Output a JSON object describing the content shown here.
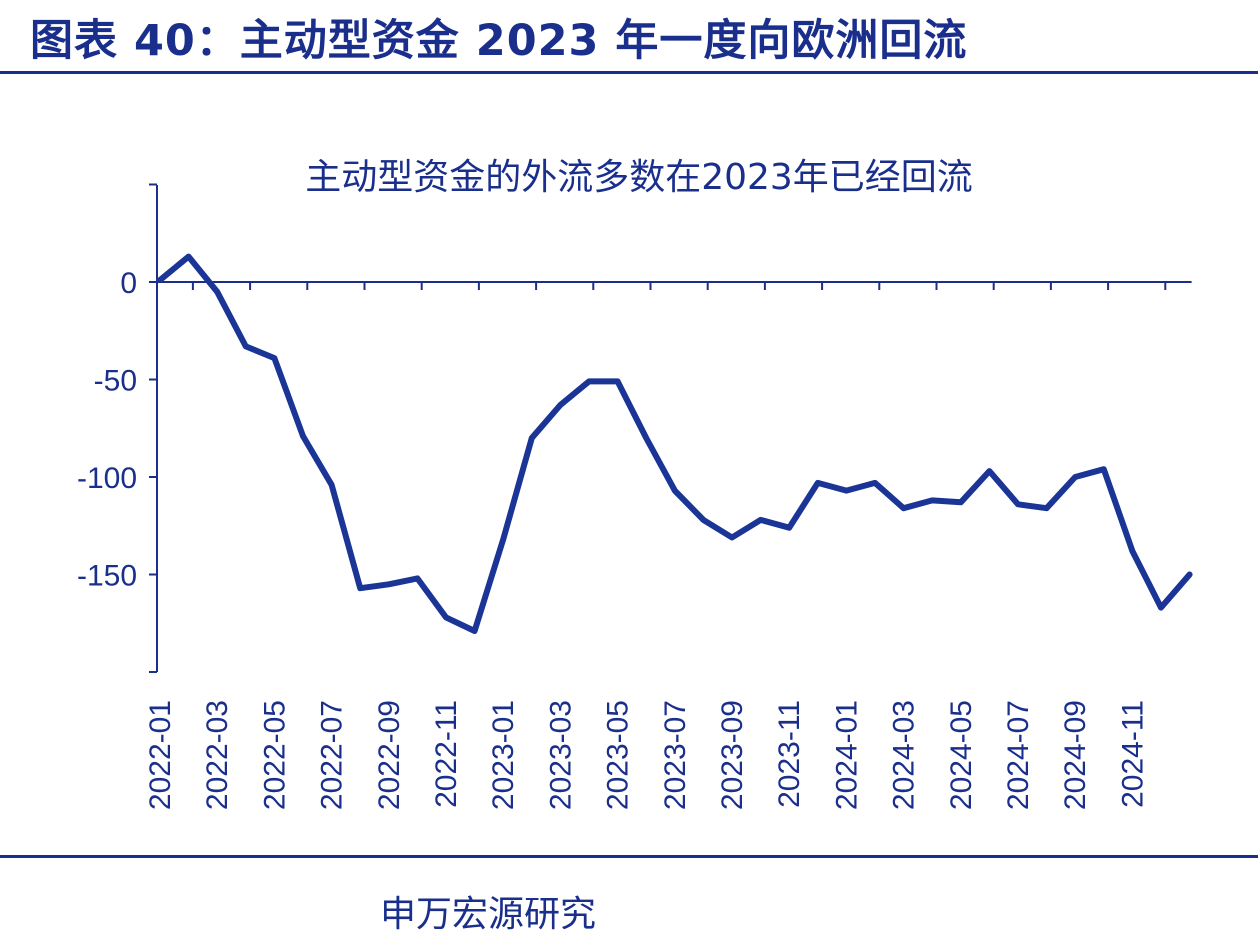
{
  "header": {
    "figure_title": "图表 40：主动型资金 2023 年一度向欧洲回流"
  },
  "footer": {
    "source": "申万宏源研究"
  },
  "colors": {
    "accent": "#1a2f8c",
    "line": "#1a3596"
  },
  "chart_data": {
    "type": "line",
    "title": "主动型资金的外流多数在2023年已经回流",
    "xlabel": "",
    "ylabel": "",
    "ylim": [
      -200,
      50
    ],
    "yticks": [
      0,
      -50,
      -100,
      -150
    ],
    "x_tick_labels": [
      "2022-01",
      "2022-03",
      "2022-05",
      "2022-07",
      "2022-09",
      "2022-11",
      "2023-01",
      "2023-03",
      "2023-05",
      "2023-07",
      "2023-09",
      "2023-11",
      "2024-01",
      "2024-03",
      "2024-05",
      "2024-07",
      "2024-09",
      "2024-11"
    ],
    "x": [
      "2022-01",
      "2022-02",
      "2022-03",
      "2022-04",
      "2022-05",
      "2022-06",
      "2022-07",
      "2022-08",
      "2022-09",
      "2022-10",
      "2022-11",
      "2022-12",
      "2023-01",
      "2023-02",
      "2023-03",
      "2023-04",
      "2023-05",
      "2023-06",
      "2023-07",
      "2023-08",
      "2023-09",
      "2023-10",
      "2023-11",
      "2023-12",
      "2024-01",
      "2024-02",
      "2024-03",
      "2024-04",
      "2024-05",
      "2024-06",
      "2024-07",
      "2024-08",
      "2024-09",
      "2024-10",
      "2024-11",
      "2024-12",
      "2025-01"
    ],
    "series": [
      {
        "values": [
          1,
          13,
          -5,
          -33,
          -39,
          -79,
          -104,
          -157,
          -155,
          -152,
          -172,
          -179,
          -132,
          -80,
          -63,
          -51,
          -51,
          -80,
          -107,
          -122,
          -131,
          -122,
          -126,
          -103,
          -107,
          -103,
          -116,
          -112,
          -113,
          -97,
          -114,
          -116,
          -100,
          -96,
          -138,
          -167,
          -150
        ]
      }
    ],
    "grid": false,
    "legend": "none"
  }
}
